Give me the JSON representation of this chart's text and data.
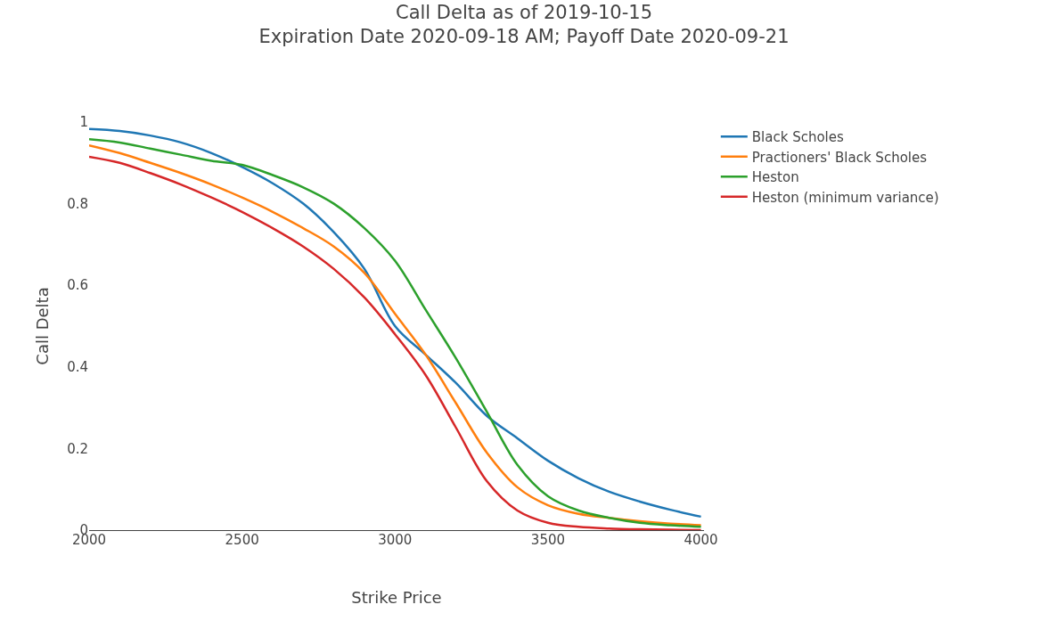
{
  "chart_data": {
    "type": "line",
    "title": "Call Delta as of 2019-10-15",
    "subtitle": "Expiration Date 2020-09-18 AM; Payoff Date 2020-09-21",
    "xlabel": "Strike Price",
    "ylabel": "Call Delta",
    "x": [
      2000,
      2100,
      2200,
      2300,
      2400,
      2500,
      2600,
      2700,
      2800,
      2900,
      3000,
      3100,
      3200,
      3300,
      3400,
      3500,
      3600,
      3700,
      3800,
      3900,
      4000
    ],
    "series": [
      {
        "name": "Black Scholes",
        "color": "#1f77b4",
        "values": [
          0.983,
          0.978,
          0.967,
          0.95,
          0.924,
          0.89,
          0.85,
          0.8,
          0.73,
          0.64,
          0.5,
          0.43,
          0.36,
          0.28,
          0.225,
          0.17,
          0.127,
          0.094,
          0.07,
          0.05,
          0.033
        ]
      },
      {
        "name": "Practioners' Black Scholes",
        "color": "#ff7f0e",
        "values": [
          0.943,
          0.924,
          0.9,
          0.875,
          0.847,
          0.815,
          0.78,
          0.74,
          0.695,
          0.63,
          0.53,
          0.43,
          0.31,
          0.19,
          0.105,
          0.061,
          0.04,
          0.03,
          0.022,
          0.016,
          0.012
        ]
      },
      {
        "name": "Heston",
        "color": "#2ca02c",
        "values": [
          0.958,
          0.95,
          0.935,
          0.92,
          0.905,
          0.895,
          0.87,
          0.84,
          0.8,
          0.74,
          0.66,
          0.54,
          0.42,
          0.29,
          0.16,
          0.083,
          0.048,
          0.03,
          0.018,
          0.012,
          0.008
        ]
      },
      {
        "name": "Heston (minimum variance)",
        "color": "#d62728",
        "values": [
          0.915,
          0.9,
          0.875,
          0.847,
          0.815,
          0.78,
          0.74,
          0.695,
          0.64,
          0.57,
          0.48,
          0.38,
          0.25,
          0.12,
          0.048,
          0.018,
          0.008,
          0.004,
          0.002,
          0.001,
          0.0
        ]
      }
    ],
    "xlim": [
      2000,
      4010
    ],
    "ylim": [
      0,
      1
    ],
    "xticks": [
      2000,
      2500,
      3000,
      3500,
      4000
    ],
    "yticks": [
      {
        "value": 0,
        "label": "0"
      },
      {
        "value": 0.2,
        "label": "0.2"
      },
      {
        "value": 0.4,
        "label": "0.4"
      },
      {
        "value": 0.6,
        "label": "0.6"
      },
      {
        "value": 0.8,
        "label": "0.8"
      },
      {
        "value": 1,
        "label": "1"
      }
    ],
    "legend": "top right"
  }
}
